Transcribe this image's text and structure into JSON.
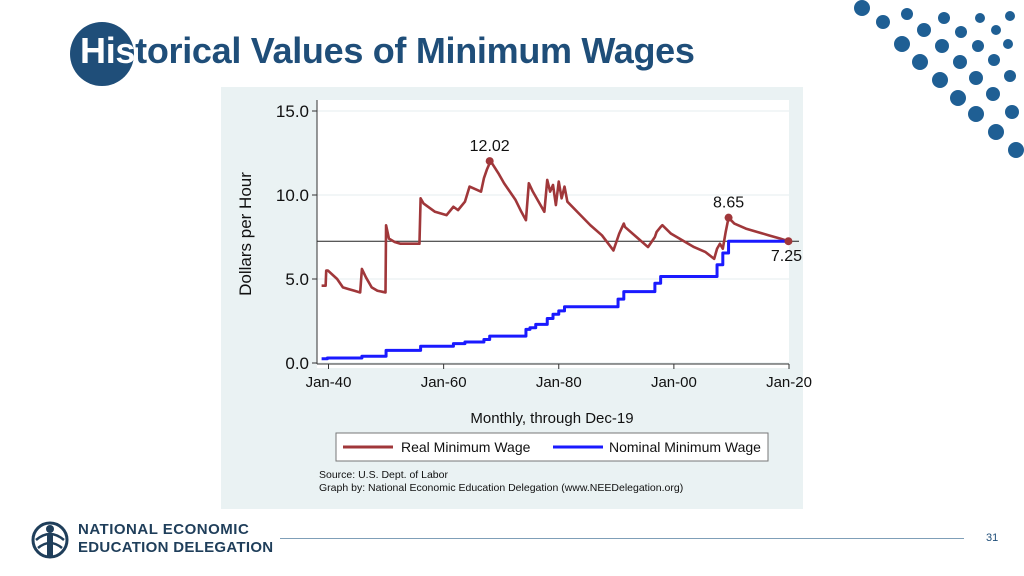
{
  "slide": {
    "title_part1": "His",
    "title_part2": "torical Values of Minimum Wages",
    "page_number": "31",
    "accent_color": "#1f4e79"
  },
  "logo": {
    "line1": "NATIONAL ECONOMIC",
    "line2": "EDUCATION DELEGATION",
    "icon": "globe-person-icon"
  },
  "chart_data": {
    "type": "line",
    "xlabel": "Monthly, through Dec-19",
    "ylabel": "Dollars per Hour",
    "xlim": [
      1938,
      2020
    ],
    "ylim": [
      0,
      15
    ],
    "x_ticks": [
      "Jan-40",
      "Jan-60",
      "Jan-80",
      "Jan-00",
      "Jan-20"
    ],
    "y_ticks": [
      "0.0",
      "5.0",
      "10.0",
      "15.0"
    ],
    "grid": true,
    "legend_position": "bottom",
    "reference_line": 7.25,
    "series": [
      {
        "name": "Real Minimum Wage",
        "color": "#a0373a",
        "x": [
          1938.8,
          1939.5,
          1939.6,
          1939.9,
          1941.5,
          1942.5,
          1943.5,
          1944.5,
          1945.5,
          1945.8,
          1946.5,
          1947.5,
          1948.5,
          1949.9,
          1950.0,
          1950.5,
          1951.5,
          1952.5,
          1953.5,
          1955.8,
          1956.0,
          1956.5,
          1958.5,
          1960.5,
          1961.7,
          1962.5,
          1963.7,
          1964.5,
          1966.5,
          1967.0,
          1967.5,
          1968.0,
          1968.2,
          1969.5,
          1970.5,
          1972.5,
          1973.5,
          1974.3,
          1974.8,
          1975.5,
          1976.5,
          1977.5,
          1978.0,
          1978.5,
          1979.0,
          1979.5,
          1980.0,
          1980.5,
          1981.0,
          1981.5,
          1983.5,
          1985.5,
          1987.5,
          1989.5,
          1990.3,
          1990.5,
          1991.3,
          1991.5,
          1993.5,
          1995.5,
          1996.7,
          1997.0,
          1997.7,
          1998.0,
          1999.5,
          2001.5,
          2003.5,
          2005.5,
          2007.0,
          2007.5,
          2008.0,
          2008.5,
          2009.0,
          2009.5,
          2010.5,
          2012.5,
          2014.5,
          2016.5,
          2018.5,
          2019.9
        ],
        "values": [
          4.6,
          4.6,
          5.5,
          5.5,
          5.0,
          4.5,
          4.4,
          4.3,
          4.2,
          5.6,
          5.1,
          4.5,
          4.3,
          4.2,
          8.2,
          7.4,
          7.2,
          7.1,
          7.1,
          7.1,
          9.8,
          9.5,
          9.0,
          8.8,
          9.3,
          9.1,
          9.6,
          10.5,
          10.2,
          11.0,
          11.5,
          11.9,
          12.0,
          11.3,
          10.7,
          9.7,
          9.0,
          8.5,
          10.7,
          10.2,
          9.6,
          9.0,
          10.9,
          10.2,
          10.6,
          9.4,
          10.8,
          9.8,
          10.5,
          9.6,
          8.9,
          8.2,
          7.6,
          6.7,
          7.5,
          7.7,
          8.3,
          8.1,
          7.5,
          6.9,
          7.5,
          7.8,
          8.1,
          8.2,
          7.7,
          7.3,
          6.9,
          6.6,
          6.2,
          6.8,
          7.1,
          6.8,
          7.8,
          8.65,
          8.3,
          8.0,
          7.8,
          7.6,
          7.4,
          7.25
        ]
      },
      {
        "name": "Nominal Minimum Wage",
        "color": "#1a1aff",
        "x": [
          1938.8,
          1939.8,
          1945.8,
          1950.0,
          1956.0,
          1961.7,
          1963.7,
          1967.0,
          1968.0,
          1974.3,
          1975.0,
          1976.0,
          1978.0,
          1979.0,
          1980.0,
          1981.0,
          1990.3,
          1991.3,
          1996.7,
          1997.7,
          2007.5,
          2008.5,
          2009.5,
          2019.9
        ],
        "values": [
          0.25,
          0.3,
          0.4,
          0.75,
          1.0,
          1.15,
          1.25,
          1.4,
          1.6,
          2.0,
          2.1,
          2.3,
          2.65,
          2.9,
          3.1,
          3.35,
          3.8,
          4.25,
          4.75,
          5.15,
          5.85,
          6.55,
          7.25,
          7.25
        ]
      }
    ],
    "annotations": [
      {
        "label": "12.02",
        "x": 1968.0,
        "y": 12.02
      },
      {
        "label": "8.65",
        "x": 2009.5,
        "y": 8.65
      },
      {
        "label": "7.25",
        "x": 2019.9,
        "y": 7.25
      }
    ],
    "source_lines": [
      "Source: U.S. Dept. of Labor",
      "Graph by: National Economic Education Delegation (www.NEEDelegation.org)"
    ]
  }
}
